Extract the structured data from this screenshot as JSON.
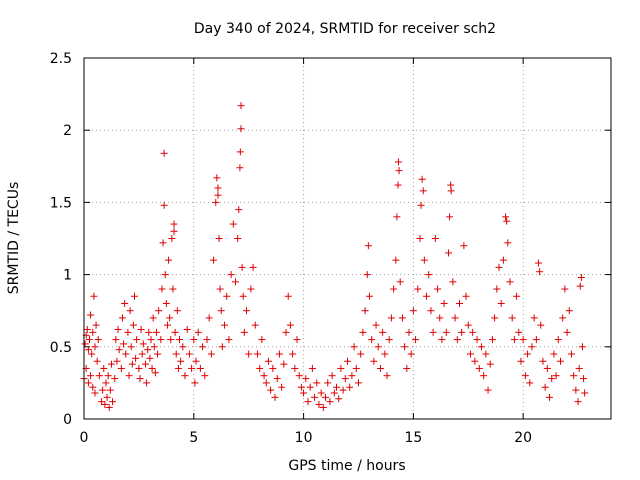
{
  "chart_data": {
    "type": "scatter",
    "title": "Day 340 of 2024, SRMTID for receiver sch2",
    "xlabel": "GPS time / hours",
    "ylabel": "SRMTID / TECUs",
    "xlim": [
      0,
      24
    ],
    "ylim": [
      0,
      2.5
    ],
    "x_ticks": [
      0,
      5,
      10,
      15,
      20
    ],
    "x_tick_labels": [
      "0",
      "5",
      "10",
      "15",
      "20"
    ],
    "y_ticks": [
      0,
      0.5,
      1,
      1.5,
      2,
      2.5
    ],
    "y_tick_labels": [
      "0",
      "0.5",
      "1",
      "1.5",
      "2",
      "2.5"
    ],
    "grid": true,
    "marker": "+",
    "series_color": "#e00000",
    "series": [
      {
        "name": "SRMTID",
        "points": [
          [
            0.0,
            0.28
          ],
          [
            0.05,
            0.52
          ],
          [
            0.1,
            0.58
          ],
          [
            0.1,
            0.35
          ],
          [
            0.15,
            0.62
          ],
          [
            0.2,
            0.25
          ],
          [
            0.2,
            0.48
          ],
          [
            0.25,
            0.55
          ],
          [
            0.3,
            0.3
          ],
          [
            0.3,
            0.72
          ],
          [
            0.35,
            0.45
          ],
          [
            0.4,
            0.22
          ],
          [
            0.4,
            0.6
          ],
          [
            0.45,
            0.85
          ],
          [
            0.5,
            0.5
          ],
          [
            0.5,
            0.18
          ],
          [
            0.55,
            0.65
          ],
          [
            0.6,
            0.4
          ],
          [
            0.65,
            0.55
          ],
          [
            0.7,
            0.3
          ],
          [
            0.8,
            0.12
          ],
          [
            0.85,
            0.2
          ],
          [
            0.9,
            0.35
          ],
          [
            0.95,
            0.1
          ],
          [
            1.0,
            0.25
          ],
          [
            1.05,
            0.15
          ],
          [
            1.1,
            0.3
          ],
          [
            1.15,
            0.08
          ],
          [
            1.2,
            0.2
          ],
          [
            1.25,
            0.38
          ],
          [
            1.3,
            0.12
          ],
          [
            1.4,
            0.28
          ],
          [
            1.45,
            0.55
          ],
          [
            1.5,
            0.4
          ],
          [
            1.55,
            0.62
          ],
          [
            1.6,
            0.48
          ],
          [
            1.7,
            0.35
          ],
          [
            1.75,
            0.7
          ],
          [
            1.8,
            0.52
          ],
          [
            1.85,
            0.8
          ],
          [
            1.9,
            0.45
          ],
          [
            2.0,
            0.6
          ],
          [
            2.05,
            0.3
          ],
          [
            2.1,
            0.75
          ],
          [
            2.15,
            0.5
          ],
          [
            2.2,
            0.38
          ],
          [
            2.25,
            0.65
          ],
          [
            2.3,
            0.85
          ],
          [
            2.35,
            0.42
          ],
          [
            2.4,
            0.55
          ],
          [
            2.5,
            0.35
          ],
          [
            2.55,
            0.28
          ],
          [
            2.6,
            0.62
          ],
          [
            2.65,
            0.45
          ],
          [
            2.7,
            0.52
          ],
          [
            2.8,
            0.38
          ],
          [
            2.85,
            0.25
          ],
          [
            2.9,
            0.48
          ],
          [
            2.95,
            0.6
          ],
          [
            3.0,
            0.42
          ],
          [
            3.05,
            0.55
          ],
          [
            3.1,
            0.35
          ],
          [
            3.15,
            0.7
          ],
          [
            3.2,
            0.5
          ],
          [
            3.25,
            0.32
          ],
          [
            3.3,
            0.6
          ],
          [
            3.35,
            0.45
          ],
          [
            3.4,
            0.75
          ],
          [
            3.5,
            0.55
          ],
          [
            3.55,
            0.9
          ],
          [
            3.6,
            1.22
          ],
          [
            3.65,
            1.84
          ],
          [
            3.65,
            1.48
          ],
          [
            3.7,
            1.0
          ],
          [
            3.75,
            0.8
          ],
          [
            3.8,
            0.65
          ],
          [
            3.85,
            1.1
          ],
          [
            3.9,
            0.7
          ],
          [
            3.95,
            0.55
          ],
          [
            4.0,
            1.25
          ],
          [
            4.05,
            0.9
          ],
          [
            4.1,
            1.3
          ],
          [
            4.1,
            1.35
          ],
          [
            4.15,
            0.6
          ],
          [
            4.2,
            0.45
          ],
          [
            4.25,
            0.75
          ],
          [
            4.3,
            0.35
          ],
          [
            4.35,
            0.55
          ],
          [
            4.4,
            0.4
          ],
          [
            4.5,
            0.5
          ],
          [
            4.6,
            0.3
          ],
          [
            4.7,
            0.62
          ],
          [
            4.8,
            0.45
          ],
          [
            4.9,
            0.35
          ],
          [
            5.0,
            0.55
          ],
          [
            5.05,
            0.25
          ],
          [
            5.1,
            0.4
          ],
          [
            5.2,
            0.6
          ],
          [
            5.3,
            0.35
          ],
          [
            5.4,
            0.5
          ],
          [
            5.5,
            0.3
          ],
          [
            5.6,
            0.55
          ],
          [
            5.7,
            0.7
          ],
          [
            5.8,
            0.45
          ],
          [
            5.9,
            1.1
          ],
          [
            6.0,
            1.5
          ],
          [
            6.05,
            1.67
          ],
          [
            6.1,
            1.6
          ],
          [
            6.1,
            1.55
          ],
          [
            6.15,
            1.25
          ],
          [
            6.2,
            0.9
          ],
          [
            6.25,
            0.75
          ],
          [
            6.3,
            0.5
          ],
          [
            6.4,
            0.65
          ],
          [
            6.5,
            0.85
          ],
          [
            6.6,
            0.55
          ],
          [
            6.7,
            1.0
          ],
          [
            6.8,
            1.35
          ],
          [
            6.9,
            0.95
          ],
          [
            7.0,
            1.25
          ],
          [
            7.05,
            1.45
          ],
          [
            7.1,
            1.74
          ],
          [
            7.12,
            1.85
          ],
          [
            7.15,
            2.17
          ],
          [
            7.15,
            2.01
          ],
          [
            7.2,
            1.05
          ],
          [
            7.25,
            0.85
          ],
          [
            7.3,
            0.6
          ],
          [
            7.4,
            0.75
          ],
          [
            7.5,
            0.45
          ],
          [
            7.6,
            0.9
          ],
          [
            7.7,
            1.05
          ],
          [
            7.8,
            0.65
          ],
          [
            7.9,
            0.45
          ],
          [
            8.0,
            0.35
          ],
          [
            8.1,
            0.55
          ],
          [
            8.2,
            0.3
          ],
          [
            8.3,
            0.25
          ],
          [
            8.4,
            0.4
          ],
          [
            8.5,
            0.2
          ],
          [
            8.6,
            0.35
          ],
          [
            8.7,
            0.15
          ],
          [
            8.8,
            0.28
          ],
          [
            8.9,
            0.45
          ],
          [
            9.0,
            0.22
          ],
          [
            9.1,
            0.38
          ],
          [
            9.2,
            0.6
          ],
          [
            9.3,
            0.85
          ],
          [
            9.4,
            0.65
          ],
          [
            9.5,
            0.45
          ],
          [
            9.6,
            0.35
          ],
          [
            9.7,
            0.55
          ],
          [
            9.8,
            0.3
          ],
          [
            9.9,
            0.22
          ],
          [
            10.0,
            0.18
          ],
          [
            10.1,
            0.28
          ],
          [
            10.2,
            0.12
          ],
          [
            10.3,
            0.22
          ],
          [
            10.4,
            0.35
          ],
          [
            10.5,
            0.15
          ],
          [
            10.6,
            0.25
          ],
          [
            10.7,
            0.1
          ],
          [
            10.8,
            0.18
          ],
          [
            10.9,
            0.08
          ],
          [
            11.0,
            0.15
          ],
          [
            11.1,
            0.25
          ],
          [
            11.2,
            0.12
          ],
          [
            11.3,
            0.3
          ],
          [
            11.4,
            0.18
          ],
          [
            11.5,
            0.22
          ],
          [
            11.6,
            0.14
          ],
          [
            11.7,
            0.35
          ],
          [
            11.8,
            0.2
          ],
          [
            11.9,
            0.28
          ],
          [
            12.0,
            0.4
          ],
          [
            12.1,
            0.22
          ],
          [
            12.2,
            0.3
          ],
          [
            12.3,
            0.5
          ],
          [
            12.4,
            0.35
          ],
          [
            12.5,
            0.25
          ],
          [
            12.6,
            0.45
          ],
          [
            12.7,
            0.6
          ],
          [
            12.8,
            0.75
          ],
          [
            12.9,
            1.0
          ],
          [
            12.95,
            1.2
          ],
          [
            13.0,
            0.85
          ],
          [
            13.1,
            0.55
          ],
          [
            13.2,
            0.4
          ],
          [
            13.3,
            0.65
          ],
          [
            13.4,
            0.5
          ],
          [
            13.5,
            0.35
          ],
          [
            13.6,
            0.6
          ],
          [
            13.7,
            0.45
          ],
          [
            13.8,
            0.3
          ],
          [
            13.9,
            0.55
          ],
          [
            14.0,
            0.7
          ],
          [
            14.1,
            0.9
          ],
          [
            14.2,
            1.1
          ],
          [
            14.25,
            1.4
          ],
          [
            14.3,
            1.62
          ],
          [
            14.32,
            1.78
          ],
          [
            14.35,
            1.72
          ],
          [
            14.4,
            0.95
          ],
          [
            14.5,
            0.7
          ],
          [
            14.6,
            0.5
          ],
          [
            14.7,
            0.35
          ],
          [
            14.8,
            0.6
          ],
          [
            14.9,
            0.45
          ],
          [
            15.0,
            0.75
          ],
          [
            15.1,
            0.55
          ],
          [
            15.2,
            0.9
          ],
          [
            15.3,
            1.25
          ],
          [
            15.35,
            1.48
          ],
          [
            15.4,
            1.66
          ],
          [
            15.45,
            1.58
          ],
          [
            15.5,
            1.1
          ],
          [
            15.6,
            0.85
          ],
          [
            15.7,
            1.0
          ],
          [
            15.8,
            0.75
          ],
          [
            15.9,
            0.6
          ],
          [
            16.0,
            1.25
          ],
          [
            16.1,
            0.9
          ],
          [
            16.2,
            0.7
          ],
          [
            16.3,
            0.55
          ],
          [
            16.4,
            0.8
          ],
          [
            16.5,
            0.6
          ],
          [
            16.6,
            1.15
          ],
          [
            16.65,
            1.4
          ],
          [
            16.7,
            1.62
          ],
          [
            16.72,
            1.58
          ],
          [
            16.8,
            0.95
          ],
          [
            16.9,
            0.7
          ],
          [
            17.0,
            0.55
          ],
          [
            17.1,
            0.8
          ],
          [
            17.2,
            0.6
          ],
          [
            17.3,
            1.2
          ],
          [
            17.4,
            0.85
          ],
          [
            17.5,
            0.65
          ],
          [
            17.6,
            0.45
          ],
          [
            17.7,
            0.6
          ],
          [
            17.8,
            0.4
          ],
          [
            17.9,
            0.55
          ],
          [
            18.0,
            0.35
          ],
          [
            18.1,
            0.5
          ],
          [
            18.2,
            0.3
          ],
          [
            18.3,
            0.45
          ],
          [
            18.4,
            0.2
          ],
          [
            18.5,
            0.38
          ],
          [
            18.6,
            0.55
          ],
          [
            18.7,
            0.7
          ],
          [
            18.8,
            0.9
          ],
          [
            18.9,
            1.05
          ],
          [
            19.0,
            0.8
          ],
          [
            19.1,
            1.1
          ],
          [
            19.2,
            1.4
          ],
          [
            19.25,
            1.37
          ],
          [
            19.3,
            1.22
          ],
          [
            19.4,
            0.95
          ],
          [
            19.5,
            0.7
          ],
          [
            19.6,
            0.55
          ],
          [
            19.7,
            0.85
          ],
          [
            19.8,
            0.6
          ],
          [
            19.9,
            0.4
          ],
          [
            20.0,
            0.55
          ],
          [
            20.1,
            0.3
          ],
          [
            20.2,
            0.45
          ],
          [
            20.3,
            0.25
          ],
          [
            20.4,
            0.5
          ],
          [
            20.5,
            0.7
          ],
          [
            20.6,
            0.55
          ],
          [
            20.7,
            1.08
          ],
          [
            20.75,
            1.02
          ],
          [
            20.8,
            0.65
          ],
          [
            20.9,
            0.4
          ],
          [
            21.0,
            0.22
          ],
          [
            21.1,
            0.35
          ],
          [
            21.2,
            0.15
          ],
          [
            21.3,
            0.28
          ],
          [
            21.4,
            0.45
          ],
          [
            21.5,
            0.3
          ],
          [
            21.6,
            0.55
          ],
          [
            21.7,
            0.4
          ],
          [
            21.8,
            0.7
          ],
          [
            21.9,
            0.9
          ],
          [
            22.0,
            0.6
          ],
          [
            22.1,
            0.75
          ],
          [
            22.2,
            0.45
          ],
          [
            22.3,
            0.3
          ],
          [
            22.4,
            0.2
          ],
          [
            22.5,
            0.12
          ],
          [
            22.55,
            0.35
          ],
          [
            22.6,
            0.92
          ],
          [
            22.65,
            0.98
          ],
          [
            22.7,
            0.5
          ],
          [
            22.75,
            0.28
          ],
          [
            22.8,
            0.18
          ]
        ]
      }
    ]
  }
}
